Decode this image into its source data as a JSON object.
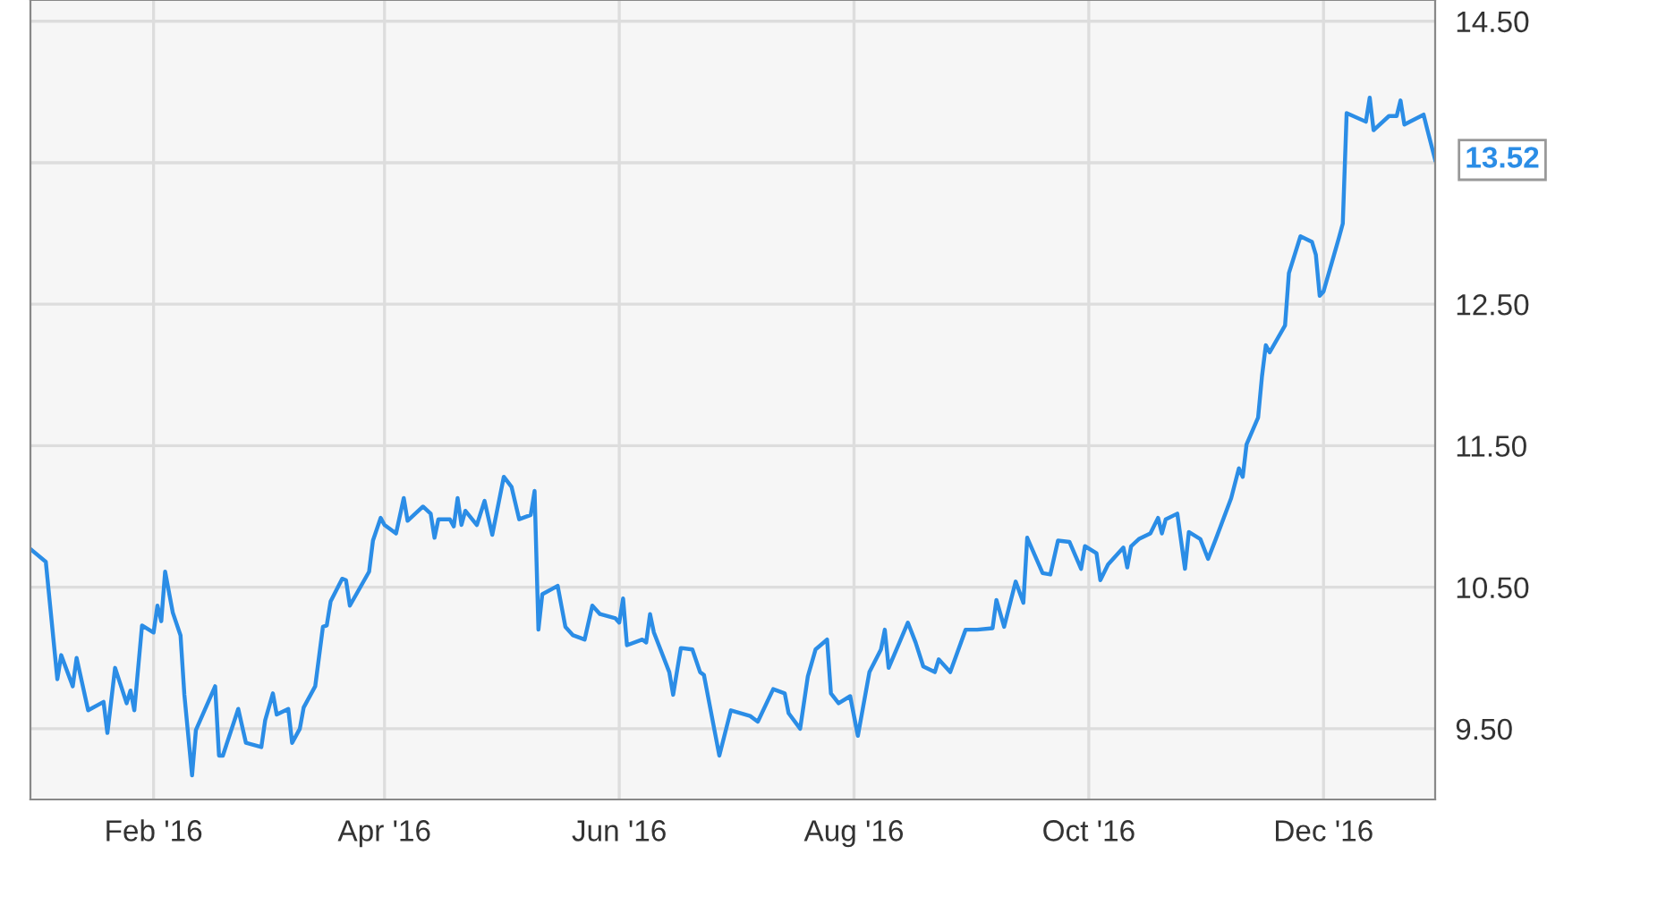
{
  "chart_data": {
    "type": "line",
    "x": [
      "2015-12-31",
      "2016-01-04",
      "2016-01-07",
      "2016-01-08",
      "2016-01-11",
      "2016-01-12",
      "2016-01-15",
      "2016-01-19",
      "2016-01-20",
      "2016-01-22",
      "2016-01-25",
      "2016-01-26",
      "2016-01-27",
      "2016-01-29",
      "2016-02-01",
      "2016-02-02",
      "2016-02-03",
      "2016-02-04",
      "2016-02-06",
      "2016-02-08",
      "2016-02-09",
      "2016-02-11",
      "2016-02-12",
      "2016-02-17",
      "2016-02-18",
      "2016-02-19",
      "2016-02-23",
      "2016-02-25",
      "2016-02-29",
      "2016-03-01",
      "2016-03-03",
      "2016-03-04",
      "2016-03-07",
      "2016-03-08",
      "2016-03-10",
      "2016-03-11",
      "2016-03-14",
      "2016-03-16",
      "2016-03-17",
      "2016-03-18",
      "2016-03-21",
      "2016-03-22",
      "2016-03-23",
      "2016-03-28",
      "2016-03-29",
      "2016-03-31",
      "2016-04-01",
      "2016-04-04",
      "2016-04-06",
      "2016-04-07",
      "2016-04-11",
      "2016-04-13",
      "2016-04-14",
      "2016-04-15",
      "2016-04-18",
      "2016-04-19",
      "2016-04-20",
      "2016-04-21",
      "2016-04-22",
      "2016-04-25",
      "2016-04-27",
      "2016-04-29",
      "2016-05-02",
      "2016-05-04",
      "2016-05-06",
      "2016-05-09",
      "2016-05-10",
      "2016-05-11",
      "2016-05-12",
      "2016-05-16",
      "2016-05-18",
      "2016-05-20",
      "2016-05-23",
      "2016-05-25",
      "2016-05-27",
      "2016-05-31",
      "2016-06-01",
      "2016-06-02",
      "2016-06-03",
      "2016-06-07",
      "2016-06-08",
      "2016-06-09",
      "2016-06-10",
      "2016-06-14",
      "2016-06-15",
      "2016-06-17",
      "2016-06-20",
      "2016-06-22",
      "2016-06-23",
      "2016-06-27",
      "2016-06-30",
      "2016-07-05",
      "2016-07-07",
      "2016-07-11",
      "2016-07-14",
      "2016-07-15",
      "2016-07-18",
      "2016-07-20",
      "2016-07-22",
      "2016-07-25",
      "2016-07-26",
      "2016-07-28",
      "2016-07-31",
      "2016-08-02",
      "2016-08-05",
      "2016-08-08",
      "2016-08-09",
      "2016-08-10",
      "2016-08-15",
      "2016-08-17",
      "2016-08-19",
      "2016-08-22",
      "2016-08-23",
      "2016-08-26",
      "2016-08-30",
      "2016-09-02",
      "2016-09-06",
      "2016-09-07",
      "2016-09-09",
      "2016-09-12",
      "2016-09-14",
      "2016-09-15",
      "2016-09-19",
      "2016-09-21",
      "2016-09-23",
      "2016-09-26",
      "2016-09-29",
      "2016-09-30",
      "2016-10-03",
      "2016-10-04",
      "2016-10-06",
      "2016-10-10",
      "2016-10-11",
      "2016-10-12",
      "2016-10-14",
      "2016-10-17",
      "2016-10-19",
      "2016-10-20",
      "2016-10-21",
      "2016-10-24",
      "2016-10-26",
      "2016-10-27",
      "2016-10-30",
      "2016-11-01",
      "2016-11-03",
      "2016-11-07",
      "2016-11-09",
      "2016-11-10",
      "2016-11-11",
      "2016-11-14",
      "2016-11-15",
      "2016-11-16",
      "2016-11-17",
      "2016-11-21",
      "2016-11-22",
      "2016-11-25",
      "2016-11-28",
      "2016-11-29",
      "2016-11-30",
      "2016-12-01",
      "2016-12-05",
      "2016-12-06",
      "2016-12-07",
      "2016-12-12",
      "2016-12-13",
      "2016-12-14",
      "2016-12-18",
      "2016-12-20",
      "2016-12-21",
      "2016-12-22",
      "2016-12-27",
      "2016-12-28",
      "2016-12-30"
    ],
    "series": [
      {
        "color": "#2b8de6",
        "values": [
          10.77,
          10.68,
          9.85,
          10.02,
          9.8,
          10.0,
          9.63,
          9.69,
          9.47,
          9.93,
          9.68,
          9.77,
          9.63,
          10.23,
          10.18,
          10.37,
          10.26,
          10.61,
          10.32,
          10.16,
          9.74,
          9.17,
          9.49,
          9.8,
          9.31,
          9.31,
          9.64,
          9.4,
          9.37,
          9.56,
          9.75,
          9.6,
          9.64,
          9.4,
          9.5,
          9.65,
          9.8,
          10.22,
          10.23,
          10.4,
          10.56,
          10.55,
          10.37,
          10.61,
          10.83,
          10.99,
          10.94,
          10.88,
          11.13,
          10.97,
          11.07,
          11.02,
          10.85,
          10.98,
          10.98,
          10.93,
          11.13,
          10.94,
          11.04,
          10.94,
          11.11,
          10.87,
          11.28,
          11.21,
          10.98,
          11.01,
          11.18,
          10.2,
          10.45,
          10.51,
          10.22,
          10.16,
          10.13,
          10.37,
          10.31,
          10.28,
          10.25,
          10.42,
          10.09,
          10.13,
          10.11,
          10.31,
          10.18,
          9.9,
          9.74,
          10.07,
          10.06,
          9.9,
          9.88,
          9.31,
          9.63,
          9.59,
          9.55,
          9.78,
          9.75,
          9.61,
          9.5,
          9.87,
          10.06,
          10.13,
          9.75,
          9.68,
          9.73,
          9.45,
          9.9,
          10.06,
          10.2,
          9.93,
          10.25,
          10.11,
          9.94,
          9.9,
          9.99,
          9.9,
          10.2,
          10.2,
          10.21,
          10.41,
          10.22,
          10.54,
          10.39,
          10.85,
          10.6,
          10.59,
          10.83,
          10.82,
          10.63,
          10.79,
          10.74,
          10.55,
          10.66,
          10.78,
          10.64,
          10.79,
          10.84,
          10.88,
          10.99,
          10.88,
          10.98,
          11.02,
          10.63,
          10.89,
          10.84,
          10.7,
          10.84,
          11.13,
          11.34,
          11.28,
          11.51,
          11.7,
          11.99,
          12.21,
          12.16,
          12.35,
          12.72,
          12.98,
          12.94,
          12.85,
          12.56,
          12.59,
          12.97,
          13.07,
          13.85,
          13.79,
          13.96,
          13.73,
          13.83,
          13.83,
          13.94,
          13.77,
          13.84,
          13.73,
          13.52
        ]
      }
    ],
    "xlim": [
      "2015-12-31",
      "2016-12-30"
    ],
    "xticks": [
      {
        "value": "2016-02-01",
        "label": "Feb '16"
      },
      {
        "value": "2016-04-01",
        "label": "Apr '16"
      },
      {
        "value": "2016-06-01",
        "label": "Jun '16"
      },
      {
        "value": "2016-08-01",
        "label": "Aug '16"
      },
      {
        "value": "2016-10-01",
        "label": "Oct '16"
      },
      {
        "value": "2016-12-01",
        "label": "Dec '16"
      }
    ],
    "ylim": [
      9.0,
      14.65
    ],
    "yticks": [
      {
        "value": 9.5,
        "label": "9.50"
      },
      {
        "value": 10.5,
        "label": "10.50"
      },
      {
        "value": 11.5,
        "label": "11.50"
      },
      {
        "value": 12.5,
        "label": "12.50"
      },
      {
        "value": 13.5,
        "label": null
      },
      {
        "value": 14.5,
        "label": "14.50"
      }
    ],
    "annotations": [
      {
        "text": "13.52",
        "x": "2016-12-30",
        "y": 13.52
      }
    ],
    "grid": true,
    "marker": "none",
    "line_style": "solid"
  }
}
